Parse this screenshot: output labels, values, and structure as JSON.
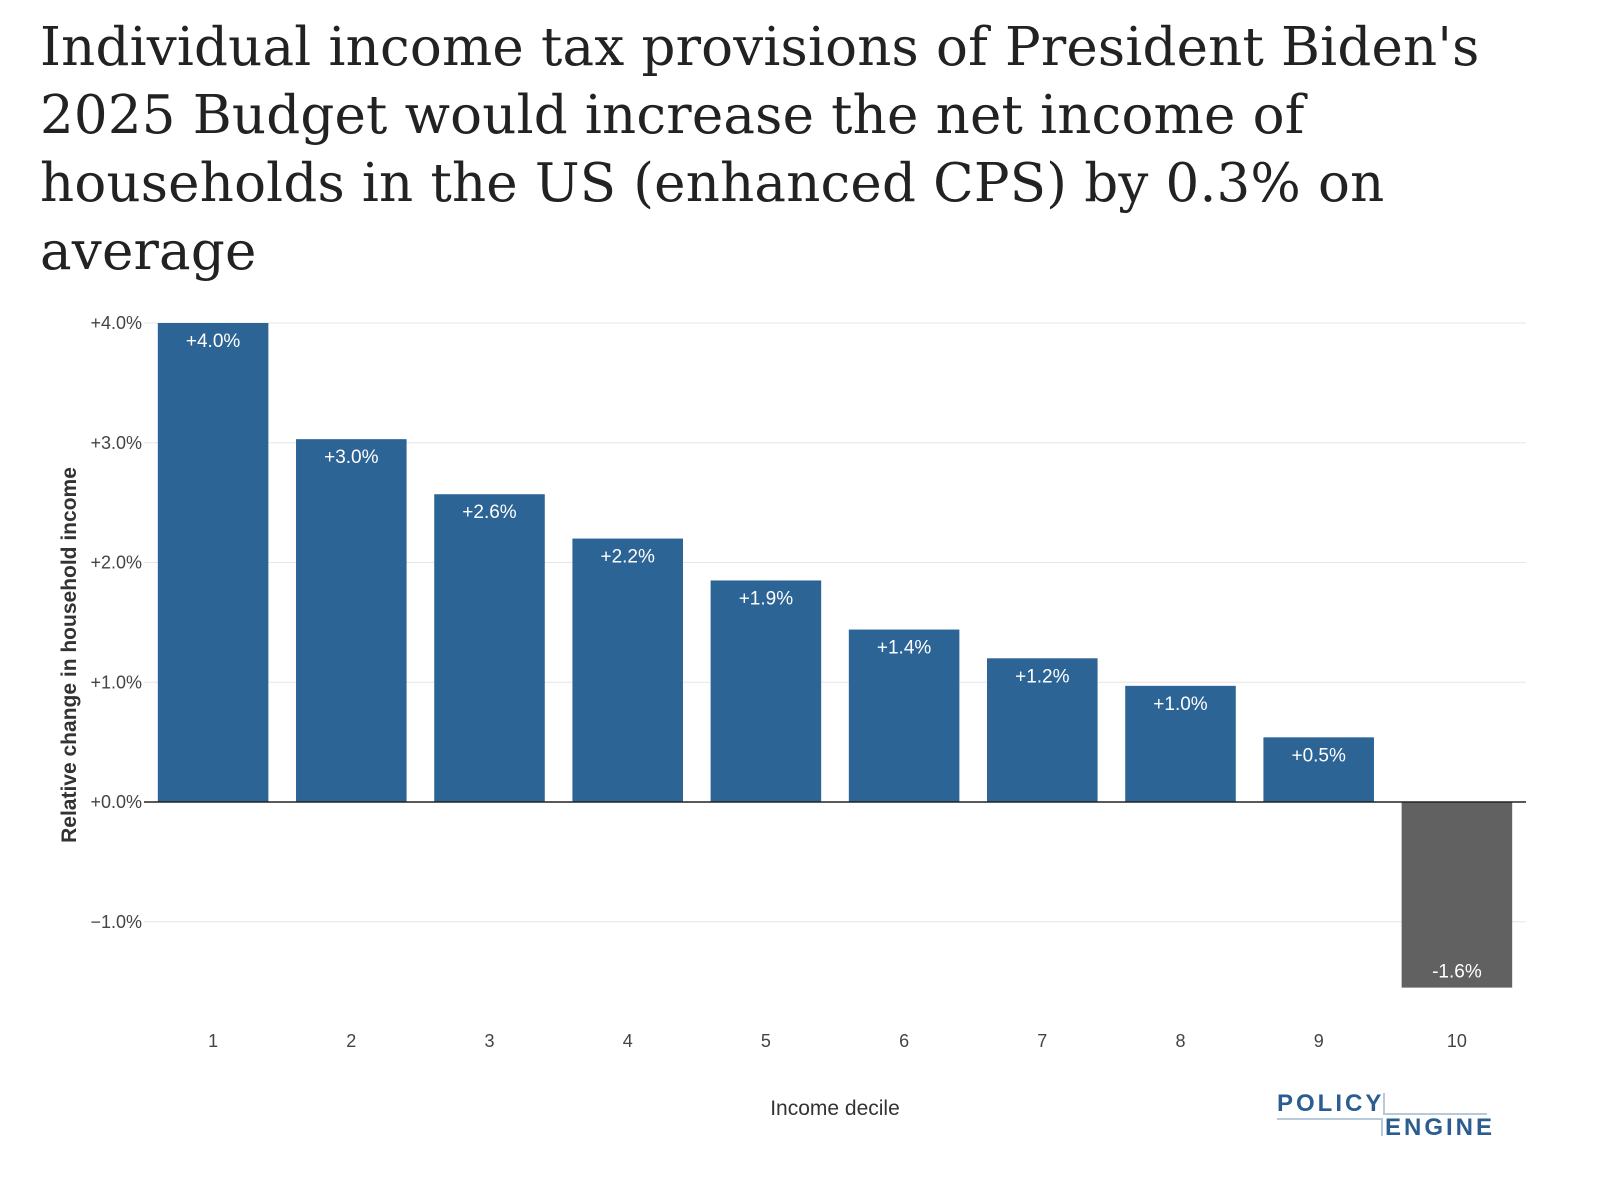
{
  "chart_data": {
    "type": "bar",
    "title": "Individual income tax provisions of President Biden's 2025 Budget would increase the net income of households in the US (enhanced CPS) by 0.3% on average",
    "xlabel": "Income decile",
    "ylabel": "Relative change in household income",
    "categories": [
      "1",
      "2",
      "3",
      "4",
      "5",
      "6",
      "7",
      "8",
      "9",
      "10"
    ],
    "values": [
      4.0,
      3.03,
      2.57,
      2.2,
      1.85,
      1.44,
      1.2,
      0.97,
      0.54,
      -1.55
    ],
    "data_labels": [
      "+4.0%",
      "+3.0%",
      "+2.6%",
      "+2.2%",
      "+1.9%",
      "+1.4%",
      "+1.2%",
      "+1.0%",
      "+0.5%",
      "-1.6%"
    ],
    "ylim": [
      -1.6,
      4.0
    ],
    "yticks": [
      -1.0,
      0.0,
      1.0,
      2.0,
      3.0,
      4.0
    ],
    "ytick_labels": [
      "−1.0%",
      "+0.0%",
      "+1.0%",
      "+2.0%",
      "+3.0%",
      "+4.0%"
    ],
    "grid": true,
    "legend": "none",
    "colors": {
      "positive": "#2c6496",
      "negative": "#616161"
    }
  },
  "logo": {
    "line1": "POLICY",
    "line2": "ENGINE"
  }
}
